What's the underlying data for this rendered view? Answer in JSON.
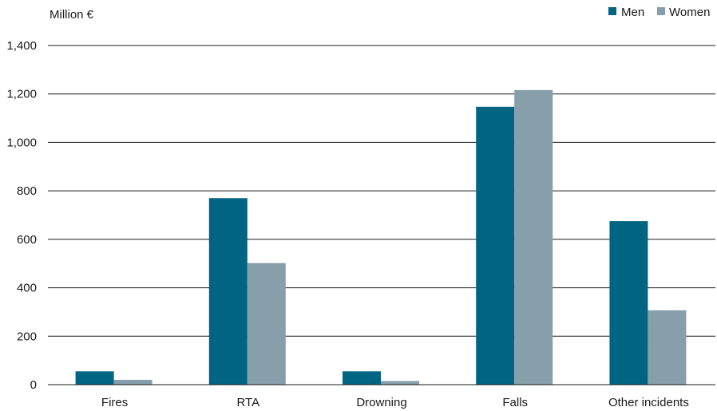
{
  "chart_data": {
    "type": "bar",
    "unit_label": "Million €",
    "categories": [
      "Fires",
      "RTA",
      "Drowning",
      "Falls",
      "Other incidents"
    ],
    "series": [
      {
        "name": "Men",
        "color": "#006482",
        "values": [
          55,
          770,
          55,
          1147,
          675
        ]
      },
      {
        "name": "Women",
        "color": "#869fab",
        "values": [
          20,
          502,
          15,
          1216,
          307
        ]
      }
    ],
    "ylim": [
      0,
      1400
    ],
    "yticks": [
      0,
      200,
      400,
      600,
      800,
      1000,
      1200,
      1400
    ],
    "ytick_labels": [
      "0",
      "200",
      "400",
      "600",
      "800",
      "1,000",
      "1,200",
      "1,400"
    ],
    "grid": true,
    "legend_position": "top-right"
  }
}
